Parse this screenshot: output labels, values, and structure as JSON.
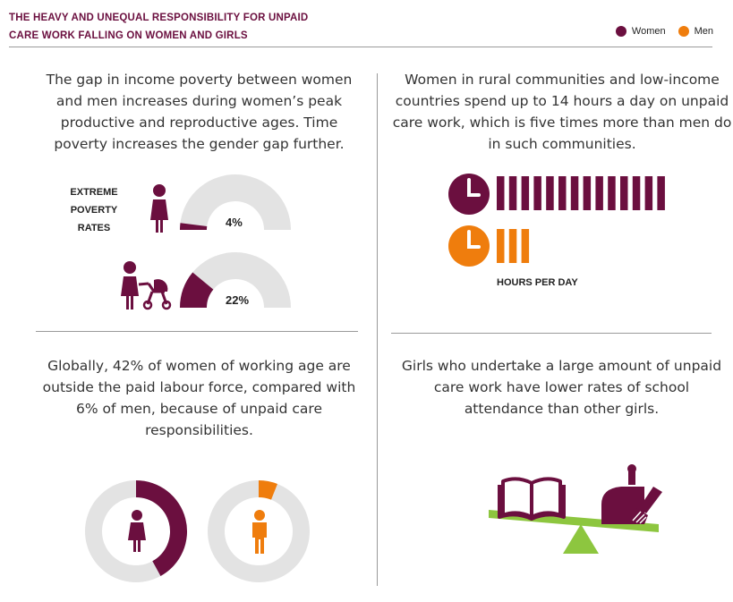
{
  "header": {
    "title_line1": "THE HEAVY AND UNEQUAL RESPONSIBILITY FOR UNPAID",
    "title_line2": "CARE WORK FALLING ON WOMEN AND GIRLS",
    "legend": [
      {
        "label": "Women",
        "color": "#6b0f3f"
      },
      {
        "label": "Men",
        "color": "#ef7d0d"
      }
    ]
  },
  "panel_poverty": {
    "text": "The gap in income poverty between women and men increases during women’s peak productive and reproductive ages. Time poverty increases the gender gap further.",
    "label_lines": [
      "EXTREME",
      "POVERTY",
      "RATES"
    ],
    "icons": [
      "woman-icon",
      "woman-with-stroller-icon"
    ]
  },
  "panel_hours": {
    "text": "Women in rural communities and low-income countries spend up to 14 hours a day on unpaid care work, which is five times more than men do in such communities.",
    "axis_label": "HOURS PER DAY",
    "icons": [
      "clock-icon"
    ]
  },
  "panel_labour": {
    "text": "Globally, 42% of women of working age are outside the paid labour force, compared with 6% of men, because of unpaid care responsibilities.",
    "icons": [
      "woman-icon",
      "man-icon"
    ]
  },
  "panel_school": {
    "text": "Girls who undertake a large amount of unpaid care work have lower rates of school attendance than other girls.",
    "icons": [
      "book-icon",
      "dustpan-brush-icon",
      "seesaw-icon"
    ]
  },
  "colors": {
    "women": "#6b0f3f",
    "men": "#ef7d0d",
    "track": "#e3e3e3",
    "accent": "#8dc63f"
  },
  "chart_data": [
    {
      "type": "gauge",
      "title": "EXTREME POVERTY RATES",
      "series": [
        {
          "value": 4,
          "label": "4%",
          "max": 100
        },
        {
          "value": 22,
          "label": "22%",
          "max": 100
        }
      ]
    },
    {
      "type": "bar",
      "title": "HOURS PER DAY",
      "categories": [
        "Women",
        "Men"
      ],
      "values": [
        14,
        3
      ]
    },
    {
      "type": "donut",
      "categories": [
        "Women",
        "Men"
      ],
      "values": [
        42,
        6
      ],
      "max": 100
    }
  ]
}
